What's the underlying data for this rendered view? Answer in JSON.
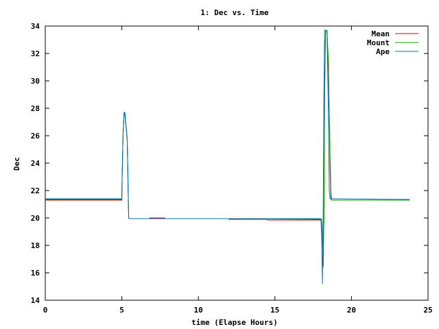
{
  "chart_data": {
    "type": "line",
    "title": "1: Dec vs. Time",
    "xlabel": "time (Elapse Hours)",
    "ylabel": "Dec",
    "xlim": [
      0,
      25
    ],
    "ylim": [
      14,
      34
    ],
    "xticks": [
      0,
      5,
      10,
      15,
      20,
      25
    ],
    "yticks": [
      14,
      16,
      18,
      20,
      22,
      24,
      26,
      28,
      30,
      32,
      34
    ],
    "grid": false,
    "legend_position": "top-right",
    "series": [
      {
        "name": "Mean",
        "color": "#cc0000",
        "x": [
          0,
          5.0,
          5.02,
          5.08,
          5.15,
          5.2,
          5.35,
          5.45,
          5.5,
          6.8,
          6.81,
          7.8,
          7.81,
          12.0,
          12.01,
          14.5,
          14.51,
          18.05,
          18.1,
          18.15,
          18.2,
          18.25,
          18.3,
          18.35,
          18.4,
          18.5,
          18.6,
          18.65,
          18.7,
          18.75,
          23.8
        ],
        "y": [
          21.3,
          21.3,
          22.9,
          26.0,
          27.6,
          27.6,
          25.7,
          20.0,
          19.95,
          19.95,
          20.0,
          20.0,
          19.95,
          19.95,
          19.9,
          19.9,
          19.85,
          19.85,
          18.7,
          16.5,
          19.9,
          29.0,
          33.6,
          33.6,
          33.6,
          30.5,
          24.5,
          22.0,
          21.3,
          21.3,
          21.3
        ]
      },
      {
        "name": "Mount",
        "color": "#00a000",
        "x": [
          0,
          5.0,
          5.02,
          5.08,
          5.15,
          5.2,
          5.35,
          5.45,
          5.5,
          12.0,
          18.05,
          18.1,
          18.15,
          18.2,
          18.25,
          18.3,
          18.35,
          18.4,
          18.5,
          18.55,
          18.6,
          18.65,
          18.7,
          23.8
        ],
        "y": [
          21.35,
          21.35,
          22.9,
          26.1,
          27.7,
          27.7,
          25.8,
          20.0,
          19.95,
          19.95,
          19.9,
          18.7,
          16.4,
          19.9,
          29.1,
          33.7,
          33.7,
          33.7,
          31.2,
          27.5,
          23.5,
          21.5,
          21.3,
          21.3
        ]
      },
      {
        "name": "Ape",
        "color": "#0070c0",
        "x": [
          0,
          5.0,
          5.02,
          5.08,
          5.15,
          5.2,
          5.35,
          5.45,
          5.5,
          12.0,
          18.0,
          18.05,
          18.1,
          18.15,
          18.2,
          18.25,
          18.3,
          18.35,
          18.4,
          18.45,
          18.5,
          18.55,
          18.6,
          18.7,
          18.75,
          23.8
        ],
        "y": [
          21.4,
          21.4,
          22.9,
          26.1,
          27.7,
          27.7,
          25.8,
          20.0,
          19.95,
          19.95,
          19.95,
          18.7,
          15.2,
          19.9,
          29.1,
          33.7,
          33.7,
          33.7,
          33.7,
          30.5,
          27.0,
          22.0,
          21.4,
          21.4,
          21.4,
          21.35
        ]
      }
    ]
  }
}
